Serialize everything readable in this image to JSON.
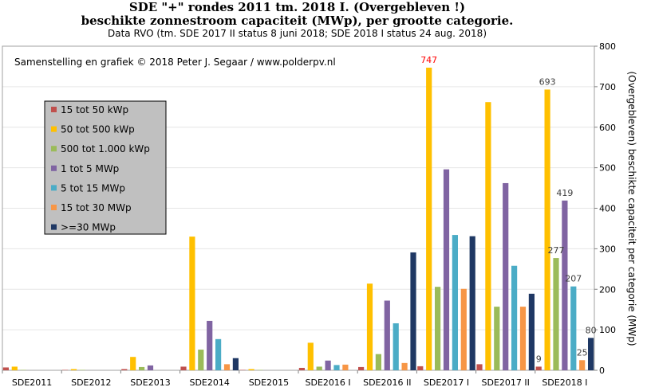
{
  "chart_data": {
    "type": "bar",
    "title": "SDE \"+\" rondes 2011 tm. 2018 I. (Overgebleven !)",
    "subtitle": "beschikte zonnestroom capaciteit (MWp), per grootte categorie.",
    "source_note": "Data RVO  (tm. SDE 2017 II status 8 juni 2018;  SDE 2018 I status 24 aug. 2018)",
    "credit": "Samenstelling en grafiek © 2018 Peter J. Segaar / www.polderpv.nl",
    "ylabel": "(Overgebleven) beschikte capaciteit per categorie (MWp)",
    "xlabel": "",
    "ylim": [
      0,
      800
    ],
    "yticks": [
      0,
      100,
      200,
      300,
      400,
      500,
      600,
      700,
      800
    ],
    "y_axis_position": "right",
    "grid": true,
    "legend_position": "top-left",
    "categories": [
      "SDE2011",
      "SDE2012",
      "SDE2013",
      "SDE2014",
      "SDE2015",
      "SDE2016 I",
      "SDE2016 II",
      "SDE2017 I",
      "SDE2017 II",
      "SDE2018 I"
    ],
    "series": [
      {
        "name": "15 tot 50 kWp",
        "color": "#c0504d",
        "values": [
          7,
          1,
          3,
          9,
          1,
          6,
          8,
          10,
          15,
          9
        ]
      },
      {
        "name": "50 tot 500 kWp",
        "color": "#ffc000",
        "values": [
          9,
          3,
          33,
          330,
          3,
          68,
          214,
          747,
          662,
          693
        ]
      },
      {
        "name": "500 tot 1.000 kWp",
        "color": "#9bbb59",
        "values": [
          1,
          1,
          8,
          51,
          1,
          9,
          40,
          206,
          157,
          277
        ]
      },
      {
        "name": "1 tot 5 MWp",
        "color": "#8064a2",
        "values": [
          0,
          0,
          12,
          122,
          0,
          24,
          172,
          496,
          462,
          419
        ]
      },
      {
        "name": "5 tot 15 MWp",
        "color": "#4bacc6",
        "values": [
          0,
          0,
          0,
          77,
          0,
          13,
          116,
          334,
          258,
          207
        ]
      },
      {
        "name": "15 tot 30 MWp",
        "color": "#f79646",
        "values": [
          0,
          0,
          0,
          15,
          0,
          14,
          18,
          201,
          157,
          25
        ]
      },
      {
        "name": ">=30 MWp",
        "color": "#1f3864",
        "values": [
          0,
          0,
          0,
          30,
          0,
          0,
          291,
          331,
          189,
          80
        ]
      }
    ],
    "data_labels": [
      {
        "category": "SDE2017 I",
        "series": "50 tot 500 kWp",
        "text": "747",
        "color": "#ff0000"
      },
      {
        "category": "SDE2018 I",
        "series": "15 tot 50 kWp",
        "text": "9",
        "color": "#404040"
      },
      {
        "category": "SDE2018 I",
        "series": "50 tot 500 kWp",
        "text": "693",
        "color": "#404040"
      },
      {
        "category": "SDE2018 I",
        "series": "500 tot 1.000 kWp",
        "text": "277",
        "color": "#404040"
      },
      {
        "category": "SDE2018 I",
        "series": "1 tot 5 MWp",
        "text": "419",
        "color": "#404040"
      },
      {
        "category": "SDE2018 I",
        "series": "5 tot 15 MWp",
        "text": "207",
        "color": "#404040"
      },
      {
        "category": "SDE2018 I",
        "series": "15 tot 30 MWp",
        "text": "25",
        "color": "#404040"
      },
      {
        "category": "SDE2018 I",
        "series": ">=30 MWp",
        "text": "80",
        "color": "#404040"
      }
    ]
  }
}
